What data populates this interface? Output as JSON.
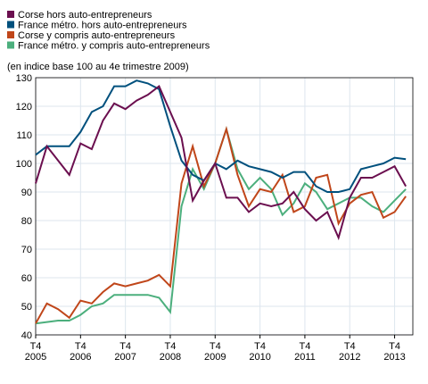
{
  "chart_data": {
    "type": "line",
    "subtitle": "(en indice base 100 au 4e trimestre 2009)",
    "categories": [
      "T4 2005",
      null,
      null,
      null,
      "T4 2006",
      null,
      null,
      null,
      "T4 2007",
      null,
      null,
      null,
      "T4 2008",
      null,
      null,
      null,
      "T4 2009",
      null,
      null,
      null,
      "T4 2010",
      null,
      null,
      null,
      "T4 2011",
      null,
      null,
      null,
      "T4 2012",
      null,
      null,
      null,
      "T4 2013",
      null
    ],
    "series": [
      {
        "name": "Corse hors auto-entrepreneurs",
        "color": "#6b0f4f",
        "values": [
          93,
          106,
          101,
          96,
          107,
          105,
          115,
          121,
          119,
          122,
          124,
          127,
          118,
          109,
          87,
          94,
          100,
          88,
          88,
          83,
          86,
          85,
          86,
          90,
          84,
          80,
          83,
          74,
          88,
          95,
          95,
          97,
          99,
          92
        ]
      },
      {
        "name": "France métro. hors auto-entrepreneurs",
        "color": "#00507d",
        "values": [
          103,
          106,
          106,
          106,
          111,
          118,
          120,
          127,
          127,
          129,
          128,
          126,
          113,
          101,
          96,
          94,
          100,
          98,
          101,
          99,
          98,
          97,
          95,
          97,
          97,
          92,
          90,
          90,
          91,
          98,
          99,
          100,
          102,
          101.5
        ]
      },
      {
        "name": "Corse y compris auto-entrepreneurs",
        "color": "#c0461a",
        "values": [
          44,
          51,
          49,
          46,
          52,
          51,
          55,
          58,
          57,
          58,
          59,
          61,
          57,
          93,
          106,
          92,
          100,
          112,
          96,
          85,
          91,
          90,
          96,
          83,
          85,
          95,
          96,
          79,
          86,
          89,
          90,
          81,
          83,
          88.5
        ]
      },
      {
        "name": "France métro. y compris auto-entrepreneurs",
        "color": "#4caf7d",
        "values": [
          44,
          44.5,
          45,
          45,
          47,
          50,
          51,
          54,
          54,
          54,
          54,
          53,
          48,
          85,
          98,
          91,
          100,
          112,
          98,
          91,
          95,
          91,
          82,
          86,
          93,
          90,
          84,
          86,
          88,
          88,
          85,
          83,
          87,
          91
        ]
      }
    ],
    "ylim": [
      40,
      130
    ],
    "yticks": [
      40,
      50,
      60,
      70,
      80,
      90,
      100,
      110,
      120,
      130
    ],
    "grid": true
  }
}
